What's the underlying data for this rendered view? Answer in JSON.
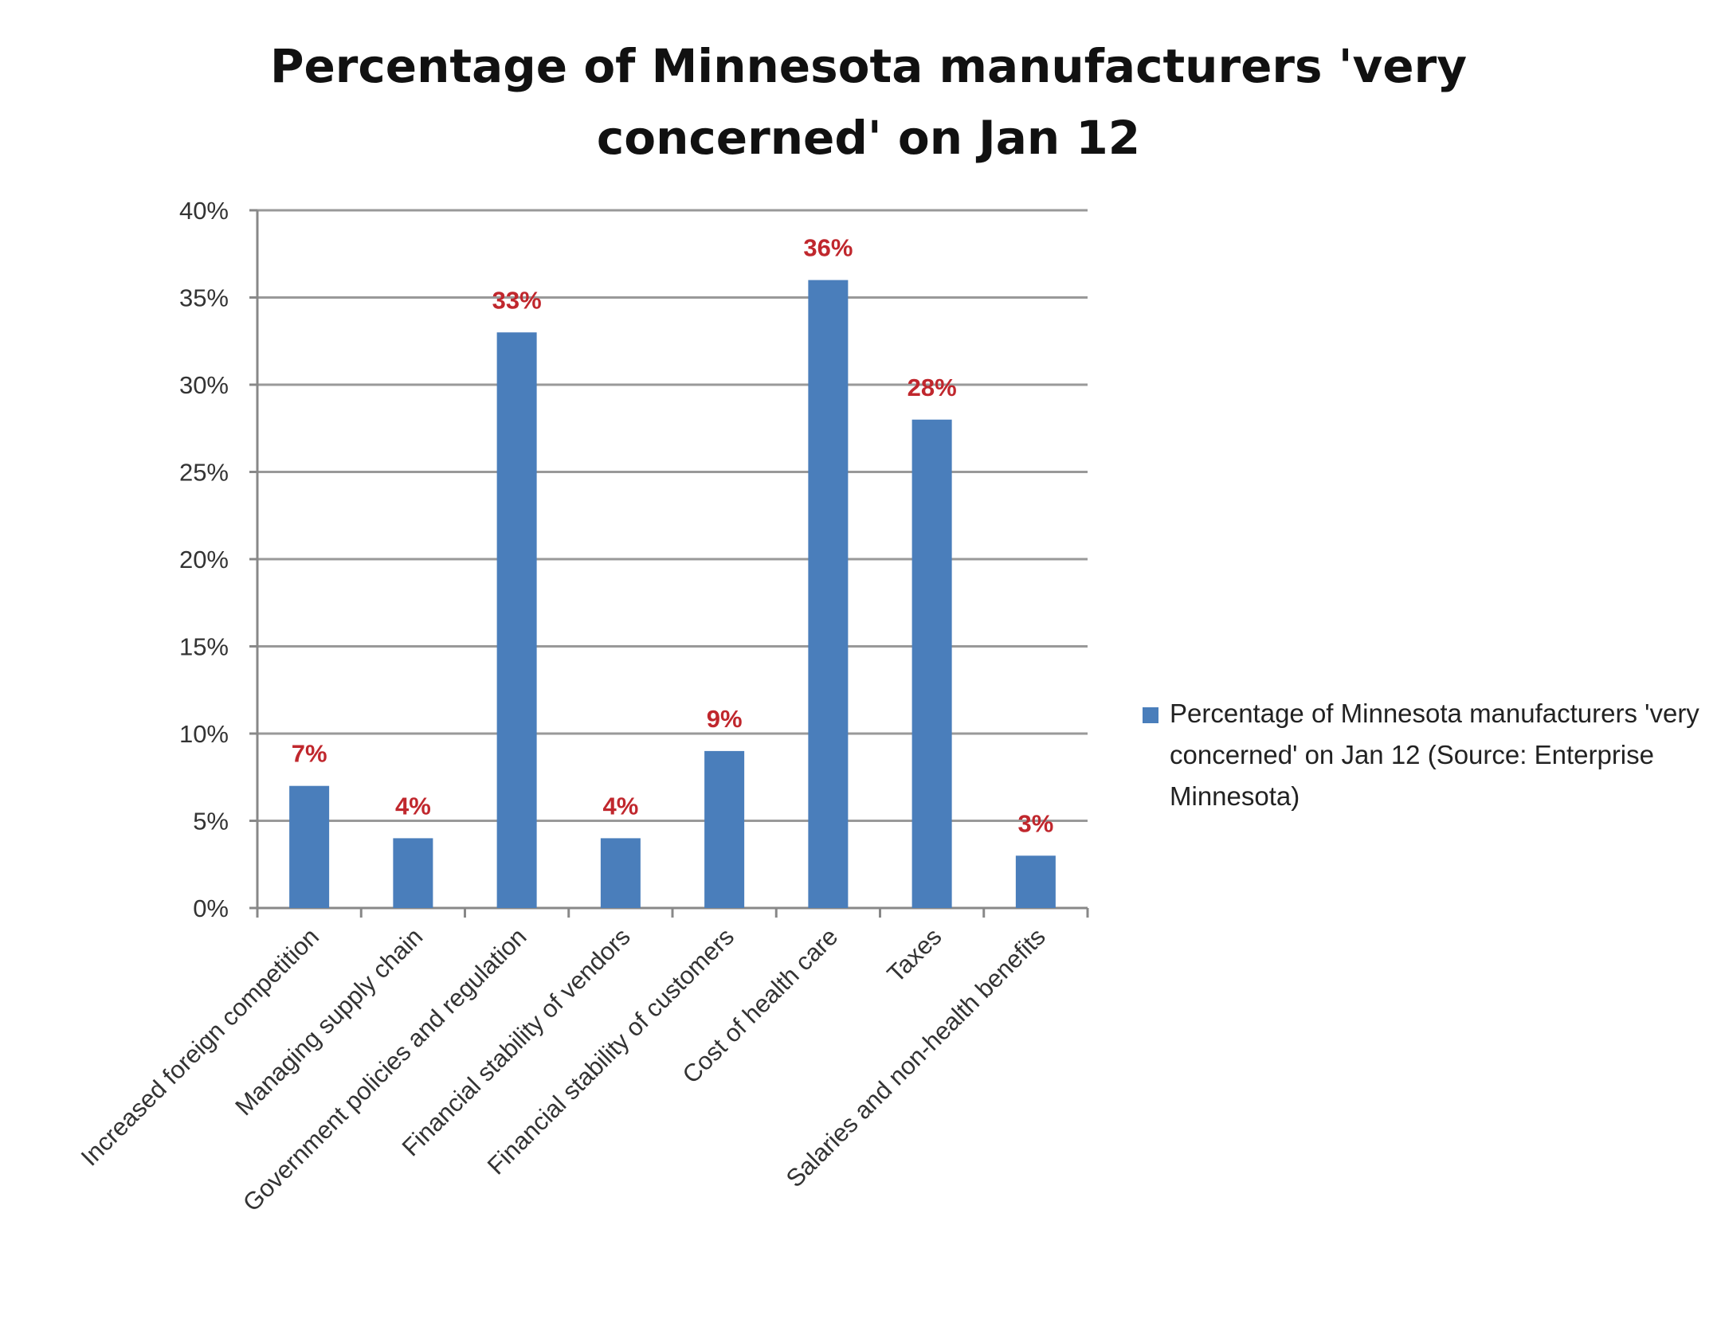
{
  "chart_data": {
    "type": "bar",
    "title": "Percentage of Minnesota manufacturers 'very concerned' on Jan 12",
    "categories": [
      "Increased foreign competition",
      "Managing supply chain",
      "Government policies and regulation",
      "Financial stability of vendors",
      "Financial stability of customers",
      "Cost of health care",
      "Taxes",
      "Salaries and non-health benefits"
    ],
    "series": [
      {
        "name": "Percentage of Minnesota manufacturers 'very concerned' on Jan 12 (Source: Enterprise Minnesota)",
        "values": [
          7,
          4,
          33,
          4,
          9,
          36,
          28,
          3
        ],
        "color": "#4a7ebb"
      }
    ],
    "data_labels": [
      "7%",
      "4%",
      "33%",
      "4%",
      "9%",
      "36%",
      "28%",
      "3%"
    ],
    "data_label_color": "#c0272d",
    "yticks": [
      "0%",
      "5%",
      "10%",
      "15%",
      "20%",
      "25%",
      "30%",
      "35%",
      "40%"
    ],
    "ylim": [
      0,
      40
    ],
    "xlabel": "",
    "ylabel": "",
    "grid": true,
    "legend": "right"
  }
}
